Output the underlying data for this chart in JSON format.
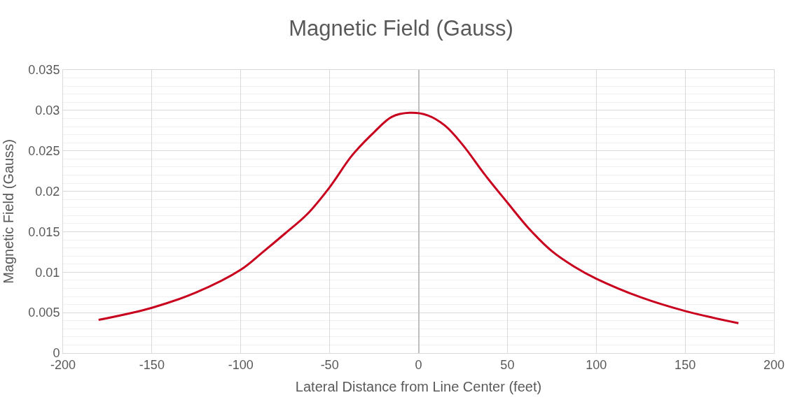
{
  "chart_data": {
    "type": "line",
    "title": "Magnetic Field (Gauss)",
    "xlabel": "Lateral Distance from Line Center (feet)",
    "ylabel": "Magnetic Field (Gauss)",
    "x": [
      -180,
      -150,
      -125,
      -100,
      -87.5,
      -75,
      -62.5,
      -50,
      -37.5,
      -25,
      -15,
      -5,
      5,
      15,
      25,
      37.5,
      50,
      62.5,
      75,
      87.5,
      100,
      125,
      150,
      180
    ],
    "series": [
      {
        "color": "#c8001e",
        "values": [
          0.0041,
          0.0056,
          0.0075,
          0.0103,
          0.0125,
          0.0148,
          0.0172,
          0.0205,
          0.0244,
          0.0273,
          0.0292,
          0.0297,
          0.0294,
          0.0281,
          0.0257,
          0.022,
          0.0186,
          0.0153,
          0.0126,
          0.0107,
          0.0092,
          0.0069,
          0.0052,
          0.0037
        ]
      }
    ],
    "xlim": [
      -200,
      200
    ],
    "xticks": [
      -200,
      -150,
      -100,
      -50,
      0,
      50,
      100,
      150,
      200
    ],
    "ylim": [
      0,
      0.035
    ],
    "yticks": [
      0,
      0.005,
      0.01,
      0.015,
      0.02,
      0.025,
      0.03,
      0.035
    ],
    "grid": true,
    "marker": "none",
    "line_style": "solid"
  }
}
